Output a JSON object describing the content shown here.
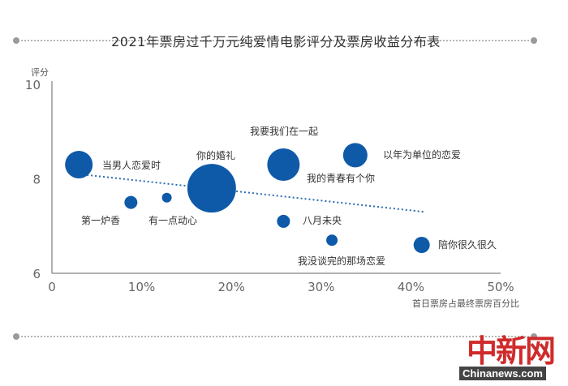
{
  "chart_data": {
    "type": "scatter",
    "title": "2021年票房过千万元纯爱情电影评分及票房收益分布表",
    "xlabel": "首日票房占最终票房百分比",
    "ylabel": "评分",
    "xlim": [
      0,
      50
    ],
    "ylim": [
      6,
      10
    ],
    "x_ticks": [
      "0",
      "10%",
      "20%",
      "30%",
      "40%",
      "50%"
    ],
    "y_ticks": [
      "6",
      "8",
      "10"
    ],
    "trendline": true,
    "marker_color": "#0f5aa8",
    "trend_color": "#2b6cb0",
    "points": [
      {
        "label": "当男人恋爱时",
        "x": 3,
        "y": 8.3,
        "size": 17
      },
      {
        "label": "第一炉香",
        "x": 8.8,
        "y": 7.5,
        "size": 8
      },
      {
        "label": "有一点动心",
        "x": 12.8,
        "y": 7.6,
        "size": 6
      },
      {
        "label": "你的婚礼",
        "x": 17.8,
        "y": 7.8,
        "size": 30
      },
      {
        "label": "我要我们在一起",
        "x": 25.8,
        "y": 8.3,
        "size": 20
      },
      {
        "label": "我的青春有个你",
        "x": 26.6,
        "y": 8.2,
        "size": 7
      },
      {
        "label": "八月未央",
        "x": 25.8,
        "y": 7.1,
        "size": 8
      },
      {
        "label": "以年为单位的恋爱",
        "x": 33.8,
        "y": 8.5,
        "size": 15
      },
      {
        "label": "我没谈完的那场恋爱",
        "x": 31.2,
        "y": 6.7,
        "size": 7
      },
      {
        "label": "陪你很久很久",
        "x": 41.2,
        "y": 6.6,
        "size": 10
      }
    ],
    "trend_start": {
      "x": 3,
      "y": 8.1
    },
    "trend_end": {
      "x": 41.5,
      "y": 7.3
    }
  },
  "watermark": {
    "cn": "中新网",
    "en": "Chinanews.com"
  }
}
